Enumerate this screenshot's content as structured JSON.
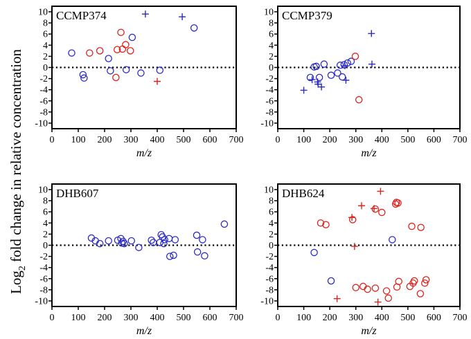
{
  "figure": {
    "ylabel_main": "Log",
    "ylabel_sub": "2",
    "ylabel_rest": " fold change in relative concentration"
  },
  "colors": {
    "blue": "#2a2ac8",
    "red": "#e0201a",
    "axis": "#000000"
  },
  "chart_data": [
    {
      "type": "scatter",
      "title": "CCMP374",
      "xlabel": "m/z",
      "xlim": [
        0,
        700
      ],
      "ylim": [
        -11,
        11
      ],
      "xticks": [
        0,
        100,
        200,
        300,
        400,
        500,
        600,
        700
      ],
      "yticks": [
        -10,
        -8,
        -6,
        -4,
        -2,
        0,
        2,
        4,
        6,
        8,
        10
      ],
      "reference_line_y": 0,
      "points": [
        {
          "x": 75,
          "y": 2.6,
          "color": "blue",
          "marker": "circle"
        },
        {
          "x": 118,
          "y": -1.3,
          "color": "blue",
          "marker": "circle"
        },
        {
          "x": 122,
          "y": -1.9,
          "color": "blue",
          "marker": "circle"
        },
        {
          "x": 143,
          "y": 2.6,
          "color": "red",
          "marker": "circle"
        },
        {
          "x": 182,
          "y": 3.0,
          "color": "red",
          "marker": "circle"
        },
        {
          "x": 215,
          "y": 1.6,
          "color": "blue",
          "marker": "circle"
        },
        {
          "x": 222,
          "y": -0.6,
          "color": "blue",
          "marker": "circle"
        },
        {
          "x": 243,
          "y": -1.8,
          "color": "red",
          "marker": "circle"
        },
        {
          "x": 248,
          "y": 3.2,
          "color": "red",
          "marker": "circle"
        },
        {
          "x": 262,
          "y": 6.3,
          "color": "red",
          "marker": "circle"
        },
        {
          "x": 268,
          "y": 3.3,
          "color": "red",
          "marker": "circle"
        },
        {
          "x": 280,
          "y": 4.1,
          "color": "red",
          "marker": "circle"
        },
        {
          "x": 282,
          "y": -0.4,
          "color": "blue",
          "marker": "circle"
        },
        {
          "x": 298,
          "y": 3.0,
          "color": "red",
          "marker": "circle"
        },
        {
          "x": 305,
          "y": 5.4,
          "color": "blue",
          "marker": "circle"
        },
        {
          "x": 338,
          "y": -1.0,
          "color": "blue",
          "marker": "circle"
        },
        {
          "x": 355,
          "y": 9.6,
          "color": "blue",
          "marker": "plus"
        },
        {
          "x": 400,
          "y": -2.5,
          "color": "red",
          "marker": "plus"
        },
        {
          "x": 410,
          "y": -0.5,
          "color": "blue",
          "marker": "circle"
        },
        {
          "x": 495,
          "y": 9.1,
          "color": "blue",
          "marker": "plus"
        },
        {
          "x": 540,
          "y": 7.1,
          "color": "blue",
          "marker": "circle"
        }
      ]
    },
    {
      "type": "scatter",
      "title": "CCMP379",
      "xlabel": "m/z",
      "xlim": [
        0,
        700
      ],
      "ylim": [
        -11,
        11
      ],
      "xticks": [
        0,
        100,
        200,
        300,
        400,
        500,
        600,
        700
      ],
      "yticks": [
        -10,
        -8,
        -6,
        -4,
        -2,
        0,
        2,
        4,
        6,
        8,
        10
      ],
      "reference_line_y": 0,
      "points": [
        {
          "x": 100,
          "y": -4.1,
          "color": "blue",
          "marker": "plus"
        },
        {
          "x": 125,
          "y": -1.8,
          "color": "blue",
          "marker": "circle"
        },
        {
          "x": 132,
          "y": -2.2,
          "color": "blue",
          "marker": "plus"
        },
        {
          "x": 140,
          "y": 0.1,
          "color": "blue",
          "marker": "circle"
        },
        {
          "x": 148,
          "y": 0.2,
          "color": "blue",
          "marker": "circle"
        },
        {
          "x": 153,
          "y": -2.6,
          "color": "blue",
          "marker": "plus"
        },
        {
          "x": 155,
          "y": -3.0,
          "color": "blue",
          "marker": "plus"
        },
        {
          "x": 160,
          "y": -1.8,
          "color": "blue",
          "marker": "circle"
        },
        {
          "x": 168,
          "y": -3.5,
          "color": "blue",
          "marker": "plus"
        },
        {
          "x": 178,
          "y": 0.6,
          "color": "blue",
          "marker": "circle"
        },
        {
          "x": 205,
          "y": -1.4,
          "color": "blue",
          "marker": "circle"
        },
        {
          "x": 230,
          "y": -1.0,
          "color": "blue",
          "marker": "circle"
        },
        {
          "x": 240,
          "y": 0.4,
          "color": "blue",
          "marker": "circle"
        },
        {
          "x": 248,
          "y": -1.7,
          "color": "blue",
          "marker": "circle"
        },
        {
          "x": 255,
          "y": 0.5,
          "color": "blue",
          "marker": "circle"
        },
        {
          "x": 258,
          "y": 0.3,
          "color": "blue",
          "marker": "plus"
        },
        {
          "x": 262,
          "y": -2.3,
          "color": "blue",
          "marker": "plus"
        },
        {
          "x": 268,
          "y": 0.8,
          "color": "blue",
          "marker": "circle"
        },
        {
          "x": 282,
          "y": 1.1,
          "color": "blue",
          "marker": "circle"
        },
        {
          "x": 298,
          "y": 2.0,
          "color": "red",
          "marker": "circle"
        },
        {
          "x": 312,
          "y": -5.8,
          "color": "red",
          "marker": "circle"
        },
        {
          "x": 360,
          "y": 6.1,
          "color": "blue",
          "marker": "plus"
        },
        {
          "x": 362,
          "y": 0.6,
          "color": "blue",
          "marker": "plus"
        }
      ]
    },
    {
      "type": "scatter",
      "title": "DHB607",
      "xlabel": "m/z",
      "xlim": [
        0,
        700
      ],
      "ylim": [
        -11,
        11
      ],
      "xticks": [
        0,
        100,
        200,
        300,
        400,
        500,
        600,
        700
      ],
      "yticks": [
        -10,
        -8,
        -6,
        -4,
        -2,
        0,
        2,
        4,
        6,
        8,
        10
      ],
      "reference_line_y": 0,
      "points": [
        {
          "x": 150,
          "y": 1.3,
          "color": "blue",
          "marker": "circle"
        },
        {
          "x": 165,
          "y": 0.8,
          "color": "blue",
          "marker": "circle"
        },
        {
          "x": 182,
          "y": 0.3,
          "color": "blue",
          "marker": "circle"
        },
        {
          "x": 215,
          "y": 0.8,
          "color": "blue",
          "marker": "circle"
        },
        {
          "x": 250,
          "y": 0.9,
          "color": "blue",
          "marker": "circle"
        },
        {
          "x": 262,
          "y": 1.2,
          "color": "blue",
          "marker": "circle"
        },
        {
          "x": 265,
          "y": 0.4,
          "color": "blue",
          "marker": "circle"
        },
        {
          "x": 270,
          "y": 0.7,
          "color": "blue",
          "marker": "circle"
        },
        {
          "x": 275,
          "y": 0.3,
          "color": "blue",
          "marker": "circle"
        },
        {
          "x": 302,
          "y": 0.8,
          "color": "blue",
          "marker": "circle"
        },
        {
          "x": 330,
          "y": -0.4,
          "color": "blue",
          "marker": "circle"
        },
        {
          "x": 378,
          "y": 0.9,
          "color": "blue",
          "marker": "circle"
        },
        {
          "x": 385,
          "y": 0.5,
          "color": "blue",
          "marker": "circle"
        },
        {
          "x": 410,
          "y": 0.5,
          "color": "blue",
          "marker": "circle"
        },
        {
          "x": 415,
          "y": 1.9,
          "color": "blue",
          "marker": "circle"
        },
        {
          "x": 420,
          "y": 1.5,
          "color": "blue",
          "marker": "circle"
        },
        {
          "x": 425,
          "y": 0.3,
          "color": "blue",
          "marker": "circle"
        },
        {
          "x": 428,
          "y": 1.0,
          "color": "blue",
          "marker": "circle"
        },
        {
          "x": 445,
          "y": 1.2,
          "color": "blue",
          "marker": "circle"
        },
        {
          "x": 448,
          "y": -2.0,
          "color": "blue",
          "marker": "circle"
        },
        {
          "x": 462,
          "y": -1.8,
          "color": "blue",
          "marker": "circle"
        },
        {
          "x": 468,
          "y": 1.0,
          "color": "blue",
          "marker": "circle"
        },
        {
          "x": 550,
          "y": 1.8,
          "color": "blue",
          "marker": "circle"
        },
        {
          "x": 553,
          "y": -1.2,
          "color": "blue",
          "marker": "circle"
        },
        {
          "x": 572,
          "y": 1.0,
          "color": "blue",
          "marker": "circle"
        },
        {
          "x": 580,
          "y": -1.9,
          "color": "blue",
          "marker": "circle"
        },
        {
          "x": 655,
          "y": 3.8,
          "color": "blue",
          "marker": "circle"
        }
      ]
    },
    {
      "type": "scatter",
      "title": "DHB624",
      "xlabel": "m/z",
      "xlim": [
        0,
        700
      ],
      "ylim": [
        -11,
        11
      ],
      "xticks": [
        0,
        100,
        200,
        300,
        400,
        500,
        600,
        700
      ],
      "yticks": [
        -10,
        -8,
        -6,
        -4,
        -2,
        0,
        2,
        4,
        6,
        8,
        10
      ],
      "reference_line_y": 0,
      "points": [
        {
          "x": 140,
          "y": -1.3,
          "color": "blue",
          "marker": "circle"
        },
        {
          "x": 165,
          "y": 4.0,
          "color": "red",
          "marker": "circle"
        },
        {
          "x": 185,
          "y": 3.7,
          "color": "red",
          "marker": "circle"
        },
        {
          "x": 205,
          "y": -6.4,
          "color": "blue",
          "marker": "circle"
        },
        {
          "x": 228,
          "y": -9.6,
          "color": "red",
          "marker": "plus"
        },
        {
          "x": 285,
          "y": 5.0,
          "color": "red",
          "marker": "plus"
        },
        {
          "x": 288,
          "y": 4.6,
          "color": "red",
          "marker": "circle"
        },
        {
          "x": 295,
          "y": -0.2,
          "color": "red",
          "marker": "plus"
        },
        {
          "x": 300,
          "y": -7.6,
          "color": "red",
          "marker": "circle"
        },
        {
          "x": 322,
          "y": 7.1,
          "color": "red",
          "marker": "plus"
        },
        {
          "x": 328,
          "y": -7.4,
          "color": "red",
          "marker": "circle"
        },
        {
          "x": 345,
          "y": -7.9,
          "color": "red",
          "marker": "circle"
        },
        {
          "x": 370,
          "y": 6.6,
          "color": "red",
          "marker": "plus"
        },
        {
          "x": 375,
          "y": 6.5,
          "color": "red",
          "marker": "circle"
        },
        {
          "x": 375,
          "y": -7.7,
          "color": "red",
          "marker": "circle"
        },
        {
          "x": 385,
          "y": -10.2,
          "color": "red",
          "marker": "plus"
        },
        {
          "x": 395,
          "y": 9.7,
          "color": "red",
          "marker": "plus"
        },
        {
          "x": 400,
          "y": 5.9,
          "color": "red",
          "marker": "circle"
        },
        {
          "x": 418,
          "y": -8.2,
          "color": "red",
          "marker": "circle"
        },
        {
          "x": 425,
          "y": -9.5,
          "color": "red",
          "marker": "circle"
        },
        {
          "x": 440,
          "y": 1.0,
          "color": "blue",
          "marker": "circle"
        },
        {
          "x": 453,
          "y": 7.4,
          "color": "red",
          "marker": "circle"
        },
        {
          "x": 456,
          "y": 7.7,
          "color": "red",
          "marker": "circle"
        },
        {
          "x": 458,
          "y": -7.5,
          "color": "red",
          "marker": "circle"
        },
        {
          "x": 462,
          "y": 7.6,
          "color": "red",
          "marker": "circle"
        },
        {
          "x": 465,
          "y": -6.5,
          "color": "red",
          "marker": "circle"
        },
        {
          "x": 508,
          "y": -7.4,
          "color": "red",
          "marker": "circle"
        },
        {
          "x": 515,
          "y": 3.4,
          "color": "red",
          "marker": "circle"
        },
        {
          "x": 520,
          "y": -6.8,
          "color": "red",
          "marker": "circle"
        },
        {
          "x": 525,
          "y": -6.4,
          "color": "red",
          "marker": "circle"
        },
        {
          "x": 548,
          "y": -8.7,
          "color": "red",
          "marker": "circle"
        },
        {
          "x": 550,
          "y": 3.2,
          "color": "red",
          "marker": "circle"
        },
        {
          "x": 565,
          "y": -6.8,
          "color": "red",
          "marker": "circle"
        },
        {
          "x": 570,
          "y": -6.2,
          "color": "red",
          "marker": "circle"
        }
      ]
    }
  ]
}
